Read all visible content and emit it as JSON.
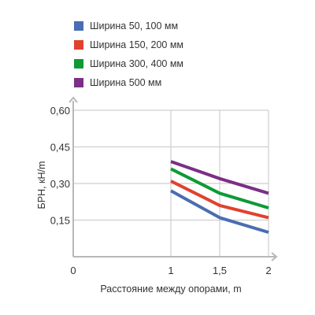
{
  "chart_data": {
    "type": "line",
    "title": "",
    "xlabel": "Расстояние между опорами, m",
    "ylabel": "БРН, кН/m",
    "x": [
      1,
      1.5,
      2
    ],
    "xlim": [
      0,
      2
    ],
    "ylim": [
      0,
      0.6
    ],
    "x_ticks": [
      "0",
      "1",
      "1,5",
      "2"
    ],
    "y_ticks": [
      "0,60",
      "0,45",
      "0,30",
      "0,15"
    ],
    "grid": true,
    "legend_position": "top-left",
    "series": [
      {
        "name": "Ширина 50, 100 мм",
        "color": "#4a6db3",
        "values": [
          0.27,
          0.16,
          0.1
        ]
      },
      {
        "name": "Ширина 150, 200 мм",
        "color": "#e0422f",
        "values": [
          0.31,
          0.21,
          0.16
        ]
      },
      {
        "name": "Ширина 300, 400 мм",
        "color": "#0f9a35",
        "values": [
          0.36,
          0.26,
          0.2
        ]
      },
      {
        "name": "Ширина 500 мм",
        "color": "#7b2f86",
        "values": [
          0.39,
          0.32,
          0.26
        ]
      }
    ]
  }
}
